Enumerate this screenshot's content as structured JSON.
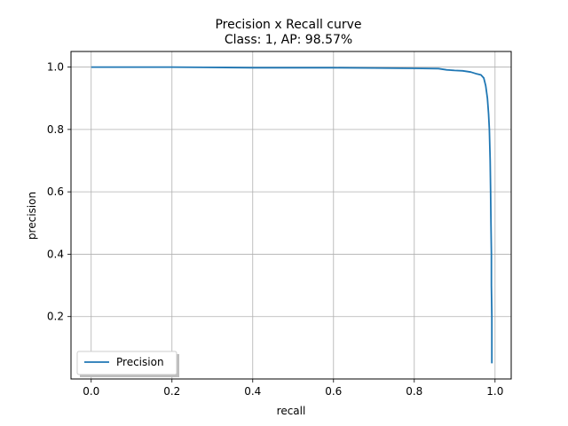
{
  "chart_data": {
    "type": "line",
    "title": "Precision x Recall curve",
    "subtitle": "Class: 1, AP: 98.57%",
    "xlabel": "recall",
    "ylabel": "precision",
    "xlim": [
      -0.05,
      1.04
    ],
    "ylim": [
      0.0,
      1.05
    ],
    "xticks": [
      0.0,
      0.2,
      0.4,
      0.6,
      0.8,
      1.0
    ],
    "xtick_labels": [
      "0.0",
      "0.2",
      "0.4",
      "0.6",
      "0.8",
      "1.0"
    ],
    "yticks": [
      0.2,
      0.4,
      0.6,
      0.8,
      1.0
    ],
    "ytick_labels": [
      "0.2",
      "0.4",
      "0.6",
      "0.8",
      "1.0"
    ],
    "grid": true,
    "legend_position": "lower-left",
    "series": [
      {
        "name": "Precision",
        "color": "#1f77b4",
        "x": [
          0.0,
          0.1,
          0.2,
          0.28,
          0.4,
          0.5,
          0.6,
          0.7,
          0.8,
          0.86,
          0.88,
          0.9,
          0.92,
          0.94,
          0.955,
          0.965,
          0.972,
          0.977,
          0.981,
          0.984,
          0.986,
          0.988,
          0.989,
          0.99,
          0.991,
          0.991,
          0.992,
          0.992,
          0.992
        ],
        "y": [
          1.0,
          1.0,
          1.0,
          0.999,
          0.998,
          0.998,
          0.998,
          0.997,
          0.996,
          0.995,
          0.991,
          0.989,
          0.988,
          0.984,
          0.978,
          0.975,
          0.965,
          0.94,
          0.9,
          0.85,
          0.8,
          0.7,
          0.6,
          0.5,
          0.4,
          0.3,
          0.2,
          0.1,
          0.05
        ]
      }
    ]
  }
}
